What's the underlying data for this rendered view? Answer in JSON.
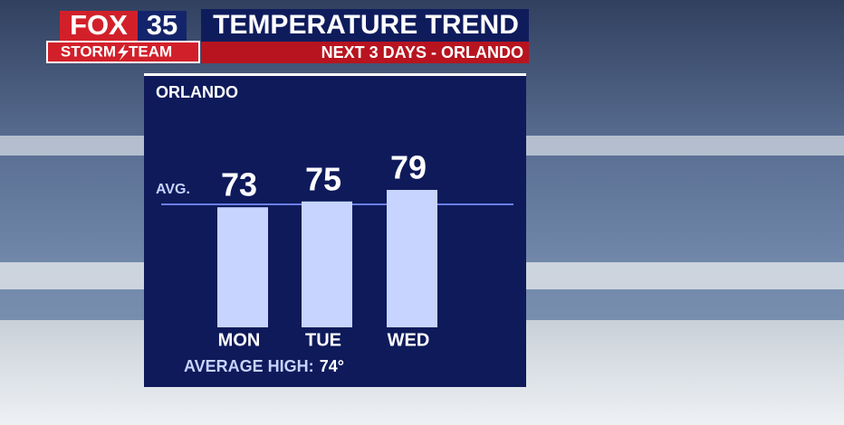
{
  "header": {
    "logo": "FOX",
    "channel": "35",
    "team_left": "STORM",
    "team_right": "TEAM",
    "title": "TEMPERATURE TREND",
    "subtitle": "NEXT 3 DAYS - ORLANDO"
  },
  "chart_data": {
    "type": "bar",
    "title": "ORLANDO",
    "categories": [
      "MON",
      "TUE",
      "WED"
    ],
    "values": [
      73,
      75,
      79
    ],
    "color": "#c6d4ff",
    "average": {
      "line_label": "AVG.",
      "label": "AVERAGE HIGH:",
      "value": 74,
      "value_label": "74°",
      "color": "#6c7fe6"
    }
  }
}
